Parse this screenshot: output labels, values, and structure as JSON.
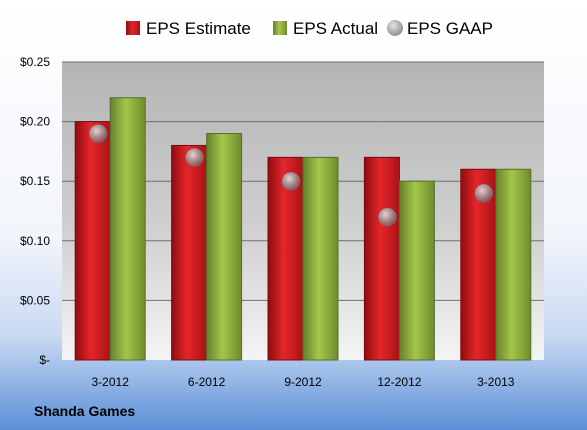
{
  "chart_data": {
    "type": "bar",
    "categories": [
      "3-2012",
      "6-2012",
      "9-2012",
      "12-2012",
      "3-2013"
    ],
    "series": [
      {
        "name": "EPS Estimate",
        "kind": "bar",
        "color": "#c0181b",
        "values": [
          0.2,
          0.18,
          0.17,
          0.17,
          0.16
        ]
      },
      {
        "name": "EPS Actual",
        "kind": "bar",
        "color": "#8fb03a",
        "values": [
          0.22,
          0.19,
          0.17,
          0.15,
          0.16
        ]
      },
      {
        "name": "EPS GAAP",
        "kind": "marker",
        "color": "#9a9a9a",
        "values": [
          0.19,
          0.17,
          0.15,
          0.12,
          0.14
        ]
      }
    ],
    "yticks": [
      {
        "value": 0.25,
        "label": "$0.25"
      },
      {
        "value": 0.2,
        "label": "$0.20"
      },
      {
        "value": 0.15,
        "label": "$0.15"
      },
      {
        "value": 0.1,
        "label": "$0.10"
      },
      {
        "value": 0.05,
        "label": "$0.05"
      },
      {
        "value": 0,
        "label": "$-"
      }
    ],
    "ylim": [
      0,
      0.25
    ],
    "grid": true,
    "legend_position": "top",
    "company": "Shanda Games"
  }
}
